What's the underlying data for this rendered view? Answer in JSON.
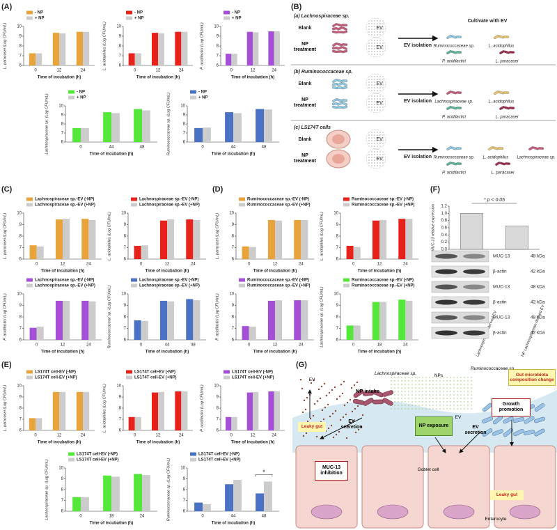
{
  "panels": [
    "(A)",
    "(B)",
    "(C)",
    "(D)",
    "(E)",
    "(F)",
    "(G)"
  ],
  "chart_data": [
    {
      "type": "bar",
      "y_label": "L. paracasei (Log CFU/mL)",
      "x_label": "Time of incubation (h)",
      "categories": [
        "0",
        "12",
        "24"
      ],
      "ylim": [
        6,
        10
      ],
      "yticks": [
        6,
        7,
        8,
        9,
        10
      ],
      "series": [
        {
          "name": "- NP",
          "color": "#e8a33a",
          "values": [
            7.25,
            9.35,
            9.45
          ]
        },
        {
          "name": "+ NP",
          "color": "#cccccc",
          "values": [
            7.25,
            9.3,
            9.45
          ]
        }
      ]
    },
    {
      "type": "bar",
      "y_label": "L. acidophilus (Log CFU/mL)",
      "x_label": "Time of incubation (h)",
      "categories": [
        "0",
        "12",
        "24"
      ],
      "ylim": [
        6,
        10
      ],
      "yticks": [
        6,
        7,
        8,
        9,
        10
      ],
      "series": [
        {
          "name": "- NP",
          "color": "#e8221b",
          "values": [
            7.25,
            9.35,
            9.45
          ]
        },
        {
          "name": "+ NP",
          "color": "#cccccc",
          "values": [
            7.25,
            9.3,
            9.45
          ]
        }
      ]
    },
    {
      "type": "bar",
      "y_label": "P. acidilactici (Log CFU/mL)",
      "x_label": "Time of incubation (h)",
      "categories": [
        "0",
        "12",
        "24"
      ],
      "ylim": [
        6,
        10
      ],
      "yticks": [
        6,
        7,
        8,
        9,
        10
      ],
      "series": [
        {
          "name": "- NP",
          "color": "#a44fd6",
          "values": [
            7.2,
            9.45,
            9.5
          ]
        },
        {
          "name": "+ NP",
          "color": "#cccccc",
          "values": [
            7.2,
            9.4,
            9.5
          ]
        }
      ]
    },
    {
      "type": "bar",
      "y_label": "Lachnospiraceae sp. (Log CFU/mL)",
      "x_label": "Time of incubation (h)",
      "categories": [
        "0",
        "44",
        "48"
      ],
      "ylim": [
        6,
        10
      ],
      "yticks": [
        6,
        7,
        8,
        9,
        10
      ],
      "series": [
        {
          "name": "- NP",
          "color": "#55e83a",
          "values": [
            7.55,
            9.3,
            9.65
          ]
        },
        {
          "name": "+ NP",
          "color": "#cccccc",
          "values": [
            7.55,
            9.2,
            9.5
          ]
        }
      ]
    },
    {
      "type": "bar",
      "y_label": "Ruminococcaceae sp. (Log CFU/mL)",
      "x_label": "Time of incubation (h)",
      "categories": [
        "0",
        "44",
        "48"
      ],
      "ylim": [
        6,
        10
      ],
      "yticks": [
        6,
        7,
        8,
        9,
        10
      ],
      "series": [
        {
          "name": "- NP",
          "color": "#4a72c4",
          "values": [
            7.55,
            9.3,
            9.65
          ]
        },
        {
          "name": "+ NP",
          "color": "#cccccc",
          "values": [
            7.6,
            9.2,
            9.6
          ]
        }
      ]
    },
    {
      "type": "bar",
      "y_label": "L. paracasei (Log CFU/mL)",
      "x_label": "Time of incubation (h)",
      "categories": [
        "0",
        "12",
        "24"
      ],
      "ylim": [
        6,
        10
      ],
      "yticks": [
        6,
        7,
        8,
        9,
        10
      ],
      "series": [
        {
          "name": "Lachnospiraceae sp.-EV (-NP)",
          "color": "#e8a33a",
          "values": [
            7.2,
            9.45,
            9.5
          ]
        },
        {
          "name": "Lachnospiraceae sp.-EV (+NP)",
          "color": "#cccccc",
          "values": [
            7.1,
            9.5,
            9.4
          ]
        }
      ]
    },
    {
      "type": "bar",
      "y_label": "L. acidophilus (Log CFU/mL)",
      "x_label": "Time of incubation (h)",
      "categories": [
        "0",
        "12",
        "24"
      ],
      "ylim": [
        6,
        10
      ],
      "yticks": [
        6,
        7,
        8,
        9,
        10
      ],
      "series": [
        {
          "name": "Lachnospiraceae sp.-EV (-NP)",
          "color": "#e8221b",
          "values": [
            7.15,
            9.35,
            9.45
          ]
        },
        {
          "name": "Lachnospiraceae sp.-EV (+NP)",
          "color": "#cccccc",
          "values": [
            7.2,
            9.45,
            9.4
          ]
        }
      ]
    },
    {
      "type": "bar",
      "y_label": "P. acidilactici (Log CFU/mL)",
      "x_label": "Time of incubation (h)",
      "categories": [
        "0",
        "12",
        "24"
      ],
      "ylim": [
        6,
        10
      ],
      "yticks": [
        6,
        7,
        8,
        9,
        10
      ],
      "series": [
        {
          "name": "Lachnospiraceae sp.-EV (-NP)",
          "color": "#a44fd6",
          "values": [
            7.05,
            9.4,
            9.4
          ]
        },
        {
          "name": "Lachnospiraceae sp.-EV (+NP)",
          "color": "#cccccc",
          "values": [
            7.15,
            9.4,
            9.35
          ]
        }
      ]
    },
    {
      "type": "bar",
      "y_label": "Ruminococcaceae sp. (Log CFU/mL)",
      "x_label": "Time of incubation (h)",
      "categories": [
        "0",
        "44",
        "48"
      ],
      "ylim": [
        6,
        10
      ],
      "yticks": [
        6,
        7,
        8,
        9,
        10
      ],
      "series": [
        {
          "name": "Lachnospiraceae sp.-EV (-NP)",
          "color": "#4a72c4",
          "values": [
            7.7,
            9.4,
            9.55
          ]
        },
        {
          "name": "Lachnospiraceae sp.-EV (+NP)",
          "color": "#cccccc",
          "values": [
            7.65,
            9.35,
            9.45
          ]
        }
      ]
    },
    {
      "type": "bar",
      "y_label": "L. paracasei (Log CFU/mL)",
      "x_label": "Time of incubation (h)",
      "categories": [
        "0",
        "12",
        "24"
      ],
      "ylim": [
        6,
        10
      ],
      "yticks": [
        6,
        7,
        8,
        9,
        10
      ],
      "series": [
        {
          "name": "Ruminococcaceae sp.-EV (-NP)",
          "color": "#e8a33a",
          "values": [
            7.1,
            9.4,
            9.4
          ]
        },
        {
          "name": "Ruminococcaceae sp.-EV (+NP)",
          "color": "#cccccc",
          "values": [
            7.05,
            9.35,
            9.4
          ]
        }
      ]
    },
    {
      "type": "bar",
      "y_label": "L. acidophilus (Log CFU/mL)",
      "x_label": "Time of incubation (h)",
      "categories": [
        "0",
        "12",
        "24"
      ],
      "ylim": [
        6,
        10
      ],
      "yticks": [
        6,
        7,
        8,
        9,
        10
      ],
      "series": [
        {
          "name": "Ruminococcaceae sp.-EV (-NP)",
          "color": "#e8221b",
          "values": [
            7.15,
            9.35,
            9.5
          ]
        },
        {
          "name": "Ruminococcaceae sp.-EV (+NP)",
          "color": "#cccccc",
          "values": [
            7.05,
            9.4,
            9.5
          ]
        }
      ]
    },
    {
      "type": "bar",
      "y_label": "P. acidilactici (Log CFU/mL)",
      "x_label": "Time of incubation (h)",
      "categories": [
        "0",
        "12",
        "24"
      ],
      "ylim": [
        6,
        10
      ],
      "yticks": [
        6,
        7,
        8,
        9,
        10
      ],
      "series": [
        {
          "name": "Ruminococcaceae sp.-EV (-NP)",
          "color": "#a44fd6",
          "values": [
            7.2,
            9.4,
            9.45
          ]
        },
        {
          "name": "Ruminococcaceae sp.-EV (+NP)",
          "color": "#cccccc",
          "values": [
            7.15,
            9.45,
            9.45
          ]
        }
      ]
    },
    {
      "type": "bar",
      "y_label": "Lachnospiraceae sp. (Log CFU/mL)",
      "x_label": "Time of incubation (h)",
      "categories": [
        "0",
        "18",
        "24"
      ],
      "ylim": [
        6,
        10
      ],
      "yticks": [
        6,
        7,
        8,
        9,
        10
      ],
      "series": [
        {
          "name": "Ruminococcaceae sp.-EV (-NP)",
          "color": "#55e83a",
          "values": [
            7.25,
            9.3,
            9.5
          ]
        },
        {
          "name": "Ruminococcaceae sp.-EV (+NP)",
          "color": "#cccccc",
          "values": [
            7.25,
            9.3,
            9.4
          ]
        }
      ]
    },
    {
      "type": "bar",
      "y_label": "MUC-13 relative expression",
      "annotation": "* p < 0.05",
      "categories": [
        "Lachnospiraceae-derived EV",
        "NP Lachnospiraceae-derived EV"
      ],
      "values": [
        1.0,
        0.65
      ],
      "color": "#d9d9d9",
      "ylim": [
        0,
        1.2
      ],
      "yticks": [
        {
          "value": 0,
          "label": "0.0"
        },
        0.2,
        0.4,
        0.6,
        0.8,
        {
          "value": 1,
          "label": "1.0"
        },
        1.2
      ]
    },
    {
      "type": "bar",
      "y_label": "L. paracasei (Log CFU/mL)",
      "x_label": "Time of incubation (h)",
      "categories": [
        "0",
        "12",
        "24"
      ],
      "ylim": [
        6,
        10
      ],
      "yticks": [
        6,
        7,
        8,
        9,
        10
      ],
      "series": [
        {
          "name": "LS174T cell-EV (-NP)",
          "color": "#e8a33a",
          "values": [
            7.1,
            9.45,
            9.45
          ]
        },
        {
          "name": "LS174T cell-EV (+NP)",
          "color": "#cccccc",
          "values": [
            7.1,
            9.45,
            9.45
          ]
        }
      ]
    },
    {
      "type": "bar",
      "y_label": "L. acidophilus (Log CFU/mL)",
      "x_label": "Time of incubation (h)",
      "categories": [
        "0",
        "12",
        "24"
      ],
      "ylim": [
        6,
        10
      ],
      "yticks": [
        6,
        7,
        8,
        9,
        10
      ],
      "series": [
        {
          "name": "LS174T cell-EV (-NP)",
          "color": "#e8221b",
          "values": [
            7.2,
            9.4,
            9.5
          ]
        },
        {
          "name": "LS174T cell-EV (+NP)",
          "color": "#cccccc",
          "values": [
            7.2,
            9.45,
            9.5
          ]
        }
      ]
    },
    {
      "type": "bar",
      "y_label": "P. acidilactici (Log CFU/mL)",
      "x_label": "Time of incubation (h)",
      "categories": [
        "0",
        "12",
        "24"
      ],
      "ylim": [
        6,
        10
      ],
      "yticks": [
        6,
        7,
        8,
        9,
        10
      ],
      "series": [
        {
          "name": "LS174T cell-EV (-NP)",
          "color": "#a44fd6",
          "values": [
            7.2,
            9.4,
            9.5
          ]
        },
        {
          "name": "LS174T cell-EV (+NP)",
          "color": "#cccccc",
          "values": [
            7.2,
            9.45,
            9.5
          ]
        }
      ]
    },
    {
      "type": "bar",
      "y_label": "Lachnospiraceae sp. (Log CFU/mL)",
      "x_label": "Time of incubation (h)",
      "categories": [
        "0",
        "18",
        "24"
      ],
      "ylim": [
        6,
        10
      ],
      "yticks": [
        6,
        7,
        8,
        9,
        10
      ],
      "series": [
        {
          "name": "LS174T cell-EV (-NP)",
          "color": "#55e83a",
          "values": [
            7.3,
            9.3,
            9.45
          ]
        },
        {
          "name": "LS174T cell-EV (+NP)",
          "color": "#cccccc",
          "values": [
            7.3,
            9.2,
            9.35
          ]
        }
      ]
    },
    {
      "type": "bar",
      "y_label": "Ruminococcaceae sp. (Log CFU/mL)",
      "x_label": "Time of incubation (h)",
      "annotation": "*",
      "categories": [
        "0",
        "44",
        "48"
      ],
      "ylim": [
        6,
        10
      ],
      "yticks": [
        6,
        7,
        8,
        9,
        10
      ],
      "series": [
        {
          "name": "LS174T cell-EV (-NP)",
          "color": "#4a72c4",
          "values": [
            6.8,
            8.5,
            7.65
          ]
        },
        {
          "name": "LS174T cell-EV (+NP)",
          "color": "#cccccc",
          "values": [
            6.65,
            8.9,
            8.75
          ]
        }
      ]
    }
  ],
  "blot": {
    "rows": [
      {
        "label": "MUC-13",
        "size": "48 kDa"
      },
      {
        "label": "β-actin",
        "size": "42 kDa"
      },
      {
        "label": "MUC-13",
        "size": "48 kDa"
      },
      {
        "label": "β-actin",
        "size": "42 kDa"
      },
      {
        "label": "MUC-13",
        "size": "48 kDa"
      },
      {
        "label": "β-actin",
        "size": "42 kDa"
      }
    ]
  },
  "diagrams": {
    "B": {
      "cultivate": "Cultivate with EV",
      "sections": [
        {
          "heading": "(a) Lachnospiraceae sp.",
          "blank": "Blank",
          "treatment": "NP treatment",
          "ev": [
            "EV",
            "EV"
          ],
          "arrow": "EV isolation",
          "outputs": [
            "Ruminococcaceae sp.",
            "L. acidophilus",
            "P. acidilactici",
            "L. paracasei"
          ]
        },
        {
          "heading": "(b) Ruminococcaceae sp.",
          "blank": "Blank",
          "treatment": "NP treatment",
          "ev": [
            "EV",
            "EV"
          ],
          "arrow": "EV isolation",
          "outputs": [
            "Lachnospiraceae sp.",
            "L. acidophilus",
            "P. acidilactici",
            "L. paracasei"
          ]
        },
        {
          "heading": "(c) LS174T cells",
          "blank": "Blank",
          "treatment": "NP treatment",
          "ev": [
            "EV",
            "EV"
          ],
          "arrow": "EV isolation",
          "outputs": [
            "Ruminococcaceae sp.",
            "L. acidophilus",
            "Lachnospiraceae sp.",
            "P. acidilactici",
            "L. paracasei"
          ]
        }
      ]
    },
    "G": {
      "labels": [
        "EV",
        "Lachnospiraceae sp.",
        "NPs",
        "Ruminococcaceae sp.",
        "Gut microbiota composition change",
        "NP intake",
        "Growth promotion",
        "Leaky gut",
        "EV secretion",
        "NP exposure",
        "EV",
        "EV secretion",
        "MUC-13 inhibition",
        "Goblet cell",
        "Leaky gut",
        "Enterocyte"
      ]
    }
  }
}
